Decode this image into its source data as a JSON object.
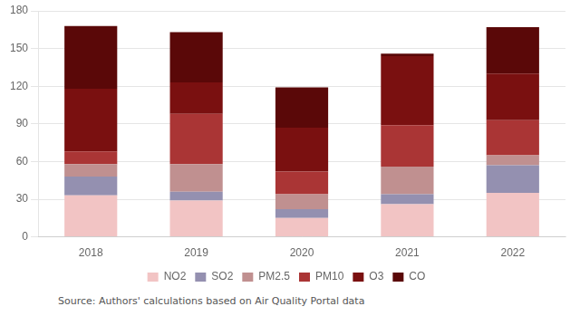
{
  "chart_data": {
    "type": "bar",
    "stacked": true,
    "categories": [
      "2018",
      "2019",
      "2020",
      "2021",
      "2022"
    ],
    "series": [
      {
        "name": "NO2",
        "color": "#f2c4c4",
        "values": [
          33,
          29,
          15,
          26,
          35
        ]
      },
      {
        "name": "SO2",
        "color": "#9490b0",
        "values": [
          15,
          7,
          7,
          8,
          22
        ]
      },
      {
        "name": "PM2.5",
        "color": "#c09090",
        "values": [
          10,
          22,
          12,
          22,
          8
        ]
      },
      {
        "name": "PM10",
        "color": "#aa3535",
        "values": [
          10,
          40,
          18,
          33,
          28
        ]
      },
      {
        "name": "O3",
        "color": "#7a1010",
        "values": [
          50,
          25,
          35,
          55,
          37
        ]
      },
      {
        "name": "CO",
        "color": "#5a0808",
        "values": [
          50,
          40,
          32,
          2,
          37
        ]
      }
    ],
    "ylim": [
      0,
      180
    ],
    "yticks": [
      0,
      30,
      60,
      90,
      120,
      150,
      180
    ],
    "grid": true,
    "legend": "bottom",
    "annotations": [
      "Source: Authors' calculations based on Air Quality Portal data"
    ]
  }
}
